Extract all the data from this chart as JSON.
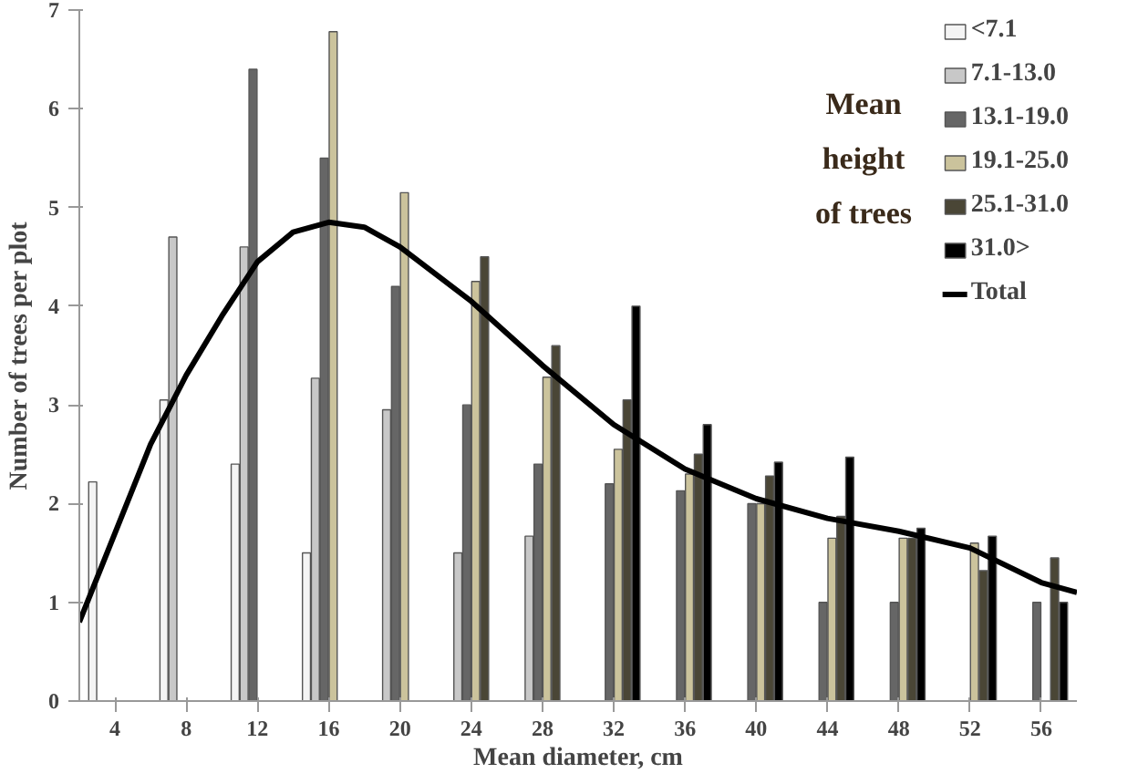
{
  "chart_data": {
    "type": "bar",
    "xlabel": "Mean diameter, cm",
    "ylabel": "Number of trees per plot",
    "x": [
      4,
      8,
      12,
      16,
      20,
      24,
      28,
      32,
      36,
      40,
      44,
      48,
      52,
      56
    ],
    "xlim": [
      2,
      58
    ],
    "xticks": [
      4,
      8,
      12,
      16,
      20,
      24,
      28,
      32,
      36,
      40,
      44,
      48,
      52,
      56
    ],
    "ylim": [
      0,
      7
    ],
    "yticks": [
      0,
      1,
      2,
      3,
      4,
      5,
      6,
      7
    ],
    "grid": false,
    "legend": "top right",
    "annotations": [
      "Mean height of trees"
    ],
    "series": [
      {
        "name": "<7.1",
        "color": "#f4f4f4",
        "values": [
          2.22,
          3.05,
          2.4,
          1.5,
          null,
          null,
          null,
          null,
          null,
          null,
          null,
          null,
          null,
          null
        ]
      },
      {
        "name": "7.1-13.0",
        "color": "#c8c8c8",
        "values": [
          null,
          4.7,
          4.6,
          3.27,
          2.95,
          1.5,
          1.67,
          null,
          null,
          null,
          null,
          null,
          null,
          null
        ]
      },
      {
        "name": "13.1-19.0",
        "color": "#666666",
        "values": [
          null,
          null,
          6.4,
          5.5,
          4.2,
          3.0,
          2.4,
          2.2,
          2.13,
          2.0,
          1.0,
          1.0,
          null,
          1.0
        ]
      },
      {
        "name": "19.1-25.0",
        "color": "#cbc39c",
        "values": [
          null,
          null,
          null,
          6.78,
          5.15,
          4.25,
          3.28,
          2.55,
          2.3,
          2.0,
          1.65,
          1.65,
          1.6,
          null
        ]
      },
      {
        "name": "25.1-31.0",
        "color": "#4a4636",
        "values": [
          null,
          null,
          null,
          null,
          null,
          4.5,
          3.6,
          3.05,
          2.5,
          2.28,
          1.87,
          1.65,
          1.32,
          1.45
        ]
      },
      {
        "name": "31.0>",
        "color": "#000000",
        "values": [
          null,
          null,
          null,
          null,
          null,
          null,
          null,
          4.0,
          2.8,
          2.42,
          2.47,
          1.75,
          1.67,
          1.0
        ]
      },
      {
        "name": "Total",
        "type": "line",
        "color": "#000000",
        "x": [
          2,
          4,
          6,
          8,
          10,
          12,
          14,
          16,
          18,
          20,
          24,
          28,
          32,
          36,
          40,
          44,
          48,
          52,
          56,
          58
        ],
        "values": [
          0.8,
          1.7,
          2.6,
          3.3,
          3.9,
          4.45,
          4.75,
          4.85,
          4.8,
          4.6,
          4.05,
          3.4,
          2.8,
          2.35,
          2.05,
          1.85,
          1.72,
          1.55,
          1.2,
          1.1
        ]
      }
    ]
  }
}
